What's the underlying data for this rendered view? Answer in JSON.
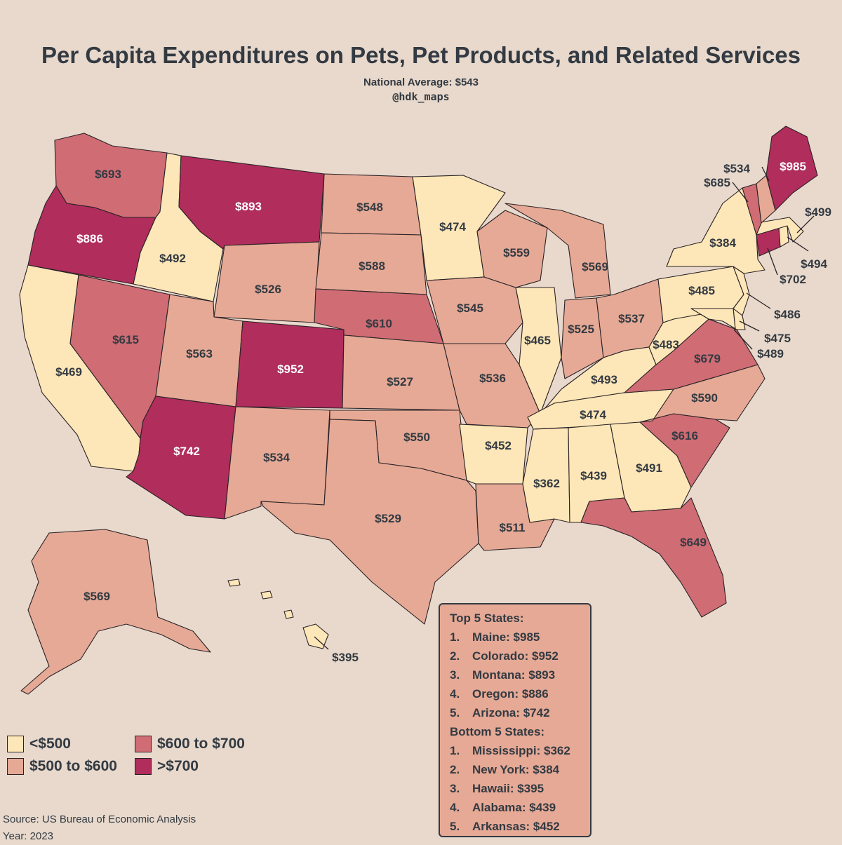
{
  "title": "Per Capita Expenditures on Pets, Pet Products, and Related Services",
  "subtitle": "National Average: $543",
  "handle": "@hdk_maps",
  "colors": {
    "background": "#e8d9cc",
    "lt500": "#fde6b7",
    "500to600": "#e5a995",
    "600to700": "#cf6c74",
    "gt700": "#b02d5c",
    "text": "#333a42"
  },
  "legend": [
    {
      "label": "<$500",
      "color": "#fde6b7"
    },
    {
      "label": "$600 to $700",
      "color": "#cf6c74"
    },
    {
      "label": "$500 to $600",
      "color": "#e5a995"
    },
    {
      "label": ">$700",
      "color": "#b02d5c"
    }
  ],
  "states": {
    "WA": {
      "name": "Washington",
      "value": 693,
      "label": "$693"
    },
    "OR": {
      "name": "Oregon",
      "value": 886,
      "label": "$886"
    },
    "CA": {
      "name": "California",
      "value": 469,
      "label": "$469"
    },
    "ID": {
      "name": "Idaho",
      "value": 492,
      "label": "$492"
    },
    "NV": {
      "name": "Nevada",
      "value": 615,
      "label": "$615"
    },
    "MT": {
      "name": "Montana",
      "value": 893,
      "label": "$893"
    },
    "WY": {
      "name": "Wyoming",
      "value": 526,
      "label": "$526"
    },
    "UT": {
      "name": "Utah",
      "value": 563,
      "label": "$563"
    },
    "AZ": {
      "name": "Arizona",
      "value": 742,
      "label": "$742"
    },
    "CO": {
      "name": "Colorado",
      "value": 952,
      "label": "$952"
    },
    "NM": {
      "name": "New Mexico",
      "value": 534,
      "label": "$534"
    },
    "ND": {
      "name": "North Dakota",
      "value": 548,
      "label": "$548"
    },
    "SD": {
      "name": "South Dakota",
      "value": 588,
      "label": "$588"
    },
    "NE": {
      "name": "Nebraska",
      "value": 610,
      "label": "$610"
    },
    "KS": {
      "name": "Kansas",
      "value": 527,
      "label": "$527"
    },
    "OK": {
      "name": "Oklahoma",
      "value": 550,
      "label": "$550"
    },
    "TX": {
      "name": "Texas",
      "value": 529,
      "label": "$529"
    },
    "MN": {
      "name": "Minnesota",
      "value": 474,
      "label": "$474"
    },
    "IA": {
      "name": "Iowa",
      "value": 545,
      "label": "$545"
    },
    "MO": {
      "name": "Missouri",
      "value": 536,
      "label": "$536"
    },
    "AR": {
      "name": "Arkansas",
      "value": 452,
      "label": "$452"
    },
    "LA": {
      "name": "Louisiana",
      "value": 511,
      "label": "$511"
    },
    "WI": {
      "name": "Wisconsin",
      "value": 559,
      "label": "$559"
    },
    "IL": {
      "name": "Illinois",
      "value": 465,
      "label": "$465"
    },
    "MI": {
      "name": "Michigan",
      "value": 569,
      "label": "$569"
    },
    "IN": {
      "name": "Indiana",
      "value": 525,
      "label": "$525"
    },
    "OH": {
      "name": "Ohio",
      "value": 537,
      "label": "$537"
    },
    "KY": {
      "name": "Kentucky",
      "value": 493,
      "label": "$493"
    },
    "TN": {
      "name": "Tennessee",
      "value": 474,
      "label": "$474"
    },
    "MS": {
      "name": "Mississippi",
      "value": 362,
      "label": "$362"
    },
    "AL": {
      "name": "Alabama",
      "value": 439,
      "label": "$439"
    },
    "GA": {
      "name": "Georgia",
      "value": 491,
      "label": "$491"
    },
    "FL": {
      "name": "Florida",
      "value": 649,
      "label": "$649"
    },
    "SC": {
      "name": "South Carolina",
      "value": 616,
      "label": "$616"
    },
    "NC": {
      "name": "North Carolina",
      "value": 590,
      "label": "$590"
    },
    "VA": {
      "name": "Virginia",
      "value": 679,
      "label": "$679"
    },
    "WV": {
      "name": "West Virginia",
      "value": 483,
      "label": "$483"
    },
    "PA": {
      "name": "Pennsylvania",
      "value": 485,
      "label": "$485"
    },
    "NY": {
      "name": "New York",
      "value": 384,
      "label": "$384"
    },
    "NJ": {
      "name": "New Jersey",
      "value": 486,
      "label": "$486"
    },
    "DE": {
      "name": "Delaware",
      "value": 475,
      "label": "$475"
    },
    "MD": {
      "name": "Maryland",
      "value": 489,
      "label": "$489"
    },
    "CT": {
      "name": "Connecticut",
      "value": 702,
      "label": "$702"
    },
    "RI": {
      "name": "Rhode Island",
      "value": 494,
      "label": "$494"
    },
    "MA": {
      "name": "Massachusetts",
      "value": 499,
      "label": "$499"
    },
    "VT": {
      "name": "Vermont",
      "value": 685,
      "label": "$685"
    },
    "NH": {
      "name": "New Hampshire",
      "value": 534,
      "label": "$534"
    },
    "ME": {
      "name": "Maine",
      "value": 985,
      "label": "$985"
    },
    "AK": {
      "name": "Alaska",
      "value": 569,
      "label": "$569"
    },
    "HI": {
      "name": "Hawaii",
      "value": 395,
      "label": "$395"
    }
  },
  "top5": {
    "heading": "Top 5 States:",
    "items": [
      {
        "rank": "1.",
        "text": "Maine: $985"
      },
      {
        "rank": "2.",
        "text": "Colorado: $952"
      },
      {
        "rank": "3.",
        "text": "Montana: $893"
      },
      {
        "rank": "4.",
        "text": "Oregon: $886"
      },
      {
        "rank": "5.",
        "text": "Arizona: $742"
      }
    ]
  },
  "bottom5": {
    "heading": "Bottom 5 States:",
    "items": [
      {
        "rank": "1.",
        "text": "Mississippi: $362"
      },
      {
        "rank": "2.",
        "text": "New York: $384"
      },
      {
        "rank": "3.",
        "text": "Hawaii: $395"
      },
      {
        "rank": "4.",
        "text": "Alabama: $439"
      },
      {
        "rank": "5.",
        "text": "Arkansas: $452"
      }
    ]
  },
  "source": "Source: US Bureau of Economic Analysis",
  "year": "Year: 2023"
}
